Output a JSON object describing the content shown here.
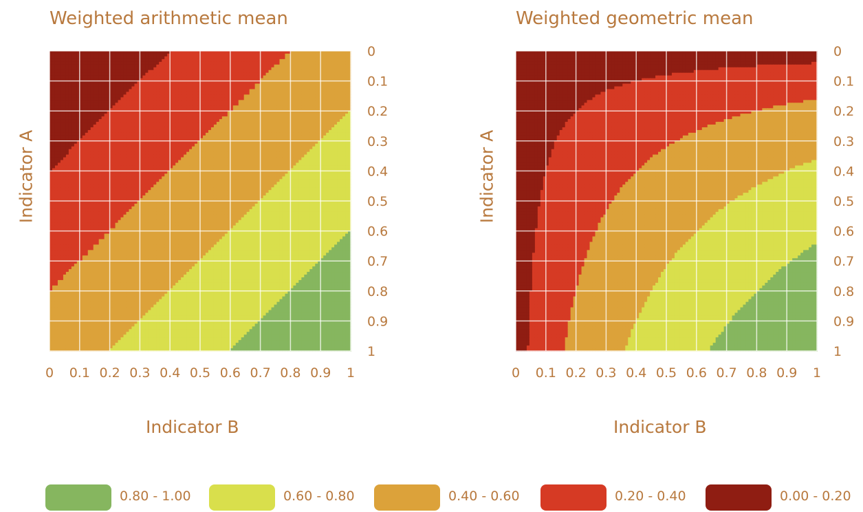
{
  "chart_data": [
    {
      "type": "heatmap",
      "title": "Weighted arithmetic mean",
      "xlabel": "Indicator B",
      "ylabel": "Indicator A",
      "x_ticks": [
        "0",
        "0.1",
        "0.2",
        "0.3",
        "0.4",
        "0.5",
        "0.6",
        "0.7",
        "0.8",
        "0.9",
        "1"
      ],
      "y_ticks": [
        "0",
        "0.1",
        "0.2",
        "0.3",
        "0.4",
        "0.5",
        "0.6",
        "0.7",
        "0.8",
        "0.9",
        "1"
      ],
      "xlim": [
        0,
        1
      ],
      "ylim": [
        0,
        1
      ],
      "grid": true,
      "formula": "0.5*A + 0.5*B",
      "bands": [
        "0.00 - 0.20",
        "0.20 - 0.40",
        "0.40 - 0.60",
        "0.60 - 0.80",
        "0.80 - 1.00"
      ]
    },
    {
      "type": "heatmap",
      "title": "Weighted geometric mean",
      "xlabel": "Indicator B",
      "ylabel": "Indicator A",
      "x_ticks": [
        "0",
        "0.1",
        "0.2",
        "0.3",
        "0.4",
        "0.5",
        "0.6",
        "0.7",
        "0.8",
        "0.9",
        "1"
      ],
      "y_ticks": [
        "0",
        "0.1",
        "0.2",
        "0.3",
        "0.4",
        "0.5",
        "0.6",
        "0.7",
        "0.8",
        "0.9",
        "1"
      ],
      "xlim": [
        0,
        1
      ],
      "ylim": [
        0,
        1
      ],
      "grid": true,
      "formula": "sqrt(A*B)",
      "bands": [
        "0.00 - 0.20",
        "0.20 - 0.40",
        "0.40 - 0.60",
        "0.60 - 0.80",
        "0.80 - 1.00"
      ]
    }
  ],
  "legend": [
    {
      "label": "0.80 - 1.00",
      "color": "#86b65f",
      "min": 0.8,
      "max": 1.0
    },
    {
      "label": "0.60 - 0.80",
      "color": "#d9df4c",
      "min": 0.6,
      "max": 0.8
    },
    {
      "label": "0.40 - 0.60",
      "color": "#dca23a",
      "min": 0.4,
      "max": 0.6
    },
    {
      "label": "0.20 - 0.40",
      "color": "#d63a24",
      "min": 0.2,
      "max": 0.4
    },
    {
      "label": "0.00 - 0.20",
      "color": "#8f1d12",
      "min": 0.0,
      "max": 0.2
    }
  ],
  "colors": {
    "text": "#b8793e",
    "grid": "#ffffff"
  }
}
